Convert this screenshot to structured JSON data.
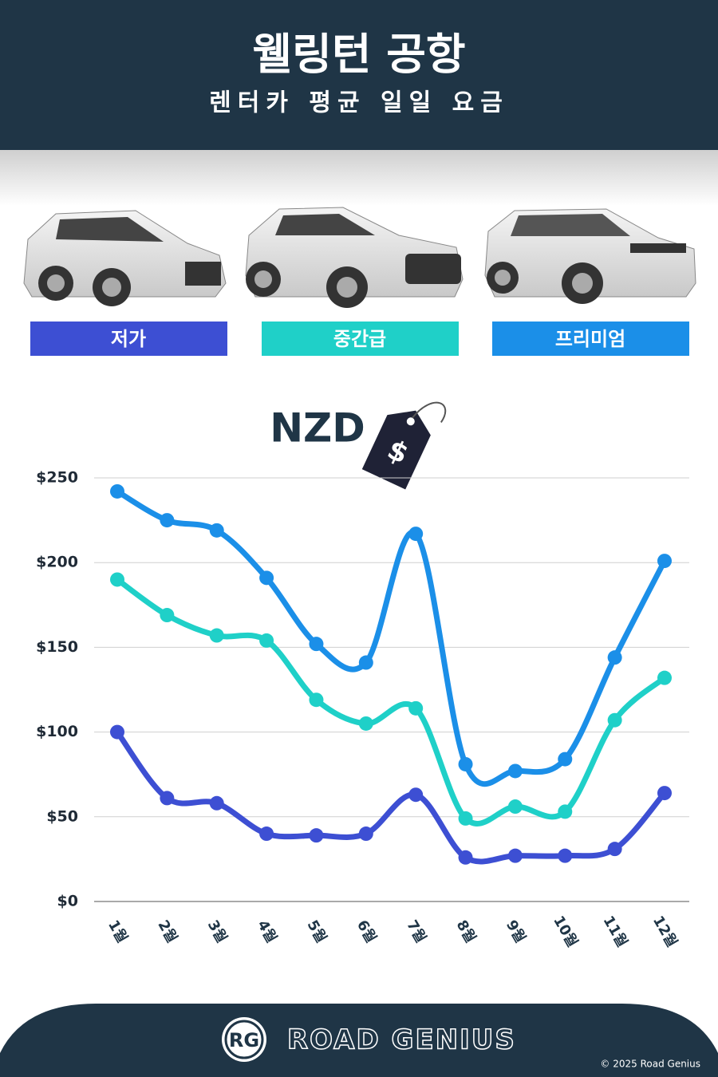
{
  "chart_data": {
    "type": "line",
    "title": "웰링턴 공항",
    "subtitle": "렌터카 평균 일일 요금",
    "unit_label": "NZD",
    "tag_symbol": "$",
    "categories": [
      "1월",
      "2월",
      "3월",
      "4월",
      "5월",
      "6월",
      "7월",
      "8월",
      "9월",
      "10월",
      "11월",
      "12월"
    ],
    "series": [
      {
        "name": "저가",
        "color": "#3d4fd3",
        "values": [
          100,
          61,
          58,
          40,
          39,
          40,
          63,
          26,
          27,
          27,
          31,
          64
        ]
      },
      {
        "name": "중간급",
        "color": "#1fd0c8",
        "values": [
          190,
          169,
          157,
          154,
          119,
          105,
          114,
          49,
          56,
          53,
          107,
          132
        ]
      },
      {
        "name": "프리미엄",
        "color": "#1b8fe8",
        "values": [
          242,
          225,
          219,
          191,
          152,
          141,
          217,
          81,
          77,
          84,
          144,
          201
        ]
      }
    ],
    "ylim": [
      0,
      250
    ],
    "yticks": [
      {
        "value": 0,
        "label": "$0"
      },
      {
        "value": 50,
        "label": "$50"
      },
      {
        "value": 100,
        "label": "$100"
      },
      {
        "value": 150,
        "label": "$150"
      },
      {
        "value": 200,
        "label": "$200"
      },
      {
        "value": 250,
        "label": "$250"
      }
    ],
    "grid": true
  },
  "footer": {
    "brand_initials": "RG",
    "brand": "ROAD GENIUS",
    "copyright": "© 2025 Road Genius"
  }
}
